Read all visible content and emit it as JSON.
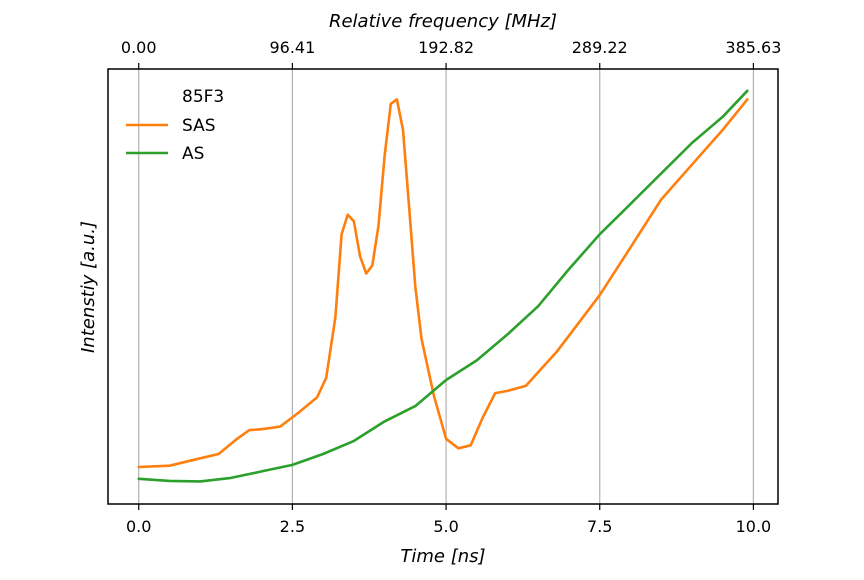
{
  "chart_data": {
    "type": "line",
    "title": "",
    "xlabel": "Time [ns]",
    "ylabel": "Intenstiy [a.u.]",
    "top_xlabel": "Relative frequency [MHz]",
    "xlim": [
      -0.5,
      10.4
    ],
    "ylim": [
      0.0,
      1.0
    ],
    "x_ticks": [
      0.0,
      2.5,
      5.0,
      7.5,
      10.0
    ],
    "x_tick_labels": [
      "0.0",
      "2.5",
      "5.0",
      "7.5",
      "10.0"
    ],
    "top_ticks": [
      0.0,
      2.5,
      5.0,
      7.5,
      10.0
    ],
    "top_tick_labels": [
      "0.00",
      "96.41",
      "192.82",
      "289.22",
      "385.63"
    ],
    "y_ticks_shown": false,
    "grid": "vertical lines at top-axis ticks",
    "legend": {
      "position": "top-left",
      "title": "85F3",
      "entries": [
        "SAS",
        "AS"
      ]
    },
    "series": [
      {
        "name": "SAS",
        "color": "#ff7f0e",
        "x": [
          0.0,
          0.5,
          1.0,
          1.3,
          1.6,
          1.8,
          2.0,
          2.3,
          2.6,
          2.9,
          3.05,
          3.2,
          3.3,
          3.4,
          3.5,
          3.6,
          3.7,
          3.8,
          3.9,
          4.0,
          4.1,
          4.2,
          4.3,
          4.4,
          4.5,
          4.6,
          4.8,
          5.0,
          5.2,
          5.4,
          5.6,
          5.8,
          6.0,
          6.3,
          6.8,
          7.5,
          8.0,
          8.5,
          9.0,
          9.5,
          9.9
        ],
        "y": [
          0.085,
          0.088,
          0.105,
          0.115,
          0.15,
          0.17,
          0.172,
          0.178,
          0.21,
          0.245,
          0.29,
          0.43,
          0.62,
          0.665,
          0.65,
          0.57,
          0.53,
          0.548,
          0.64,
          0.8,
          0.92,
          0.93,
          0.86,
          0.68,
          0.5,
          0.38,
          0.25,
          0.15,
          0.128,
          0.135,
          0.2,
          0.255,
          0.26,
          0.272,
          0.35,
          0.48,
          0.59,
          0.7,
          0.78,
          0.86,
          0.93
        ]
      },
      {
        "name": "AS",
        "color": "#2ca02c",
        "x": [
          0.0,
          0.5,
          1.0,
          1.5,
          2.0,
          2.5,
          3.0,
          3.5,
          4.0,
          4.5,
          5.0,
          5.5,
          6.0,
          6.5,
          7.0,
          7.5,
          8.0,
          8.5,
          9.0,
          9.5,
          9.9
        ],
        "y": [
          0.058,
          0.053,
          0.052,
          0.06,
          0.075,
          0.09,
          0.115,
          0.145,
          0.19,
          0.225,
          0.285,
          0.33,
          0.39,
          0.455,
          0.54,
          0.62,
          0.69,
          0.76,
          0.83,
          0.89,
          0.95
        ]
      }
    ]
  }
}
